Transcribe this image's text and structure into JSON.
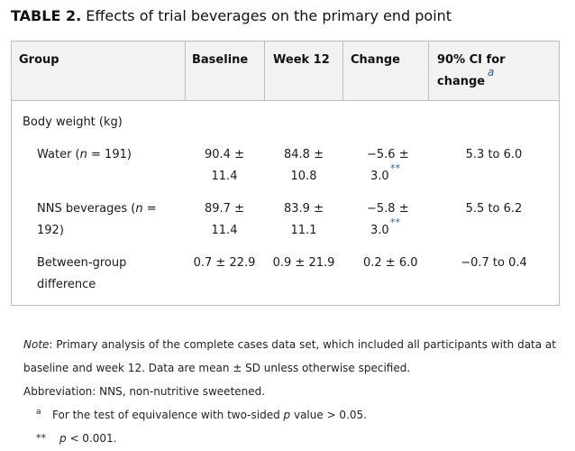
{
  "title": {
    "label": "TABLE 2.",
    "text": "Effects of trial beverages on the primary end point"
  },
  "headers": {
    "group": "Group",
    "baseline": "Baseline",
    "week12": "Week 12",
    "change": "Change",
    "ci_line1": "90% CI for",
    "ci_line2": "change",
    "ci_mark": "a"
  },
  "section": "Body weight (kg)",
  "rows": [
    {
      "group_line1": "Water (",
      "group_n": "n",
      "group_line1b": " = 191)",
      "group_line2": "",
      "baseline_line1": "90.4 ±",
      "baseline_line2": "11.4",
      "week12_line1": "84.8 ±",
      "week12_line2": "10.8",
      "change_line1": "−5.6 ±",
      "change_line2": "3.0",
      "change_mark": "**",
      "ci": "5.3 to 6.0"
    },
    {
      "group_line1": "NNS beverages (",
      "group_n": "n",
      "group_line1b": " =",
      "group_line2": "192)",
      "baseline_line1": "89.7 ±",
      "baseline_line2": "11.4",
      "week12_line1": "83.9 ±",
      "week12_line2": "11.1",
      "change_line1": "−5.8 ±",
      "change_line2": "3.0",
      "change_mark": "**",
      "ci": "5.5 to 6.2"
    },
    {
      "group_line1": "Between-group",
      "group_n": "",
      "group_line1b": "",
      "group_line2": "difference",
      "baseline_line1": "0.7 ± 22.9",
      "baseline_line2": "",
      "week12_line1": "0.9 ± 21.9",
      "week12_line2": "",
      "change_line1": "0.2 ± 6.0",
      "change_line2": "",
      "change_mark": "",
      "ci": "−0.7 to 0.4"
    }
  ],
  "notes": {
    "note_label": "Note",
    "note_line1": ": Primary analysis of the complete cases data set, which included all participants with data at",
    "note_line2": "baseline and week 12. Data are mean ± SD unless otherwise specified.",
    "abbreviation": "Abbreviation: NNS, non-nutritive sweetened.",
    "footnote_a_mark": "a",
    "footnote_a_text1": "For the test of equivalence with two-sided ",
    "footnote_a_p": "p",
    "footnote_a_text2": " value > 0.05.",
    "footnote_b_mark": "**",
    "footnote_b_p": "p",
    "footnote_b_text": " < 0.001."
  }
}
